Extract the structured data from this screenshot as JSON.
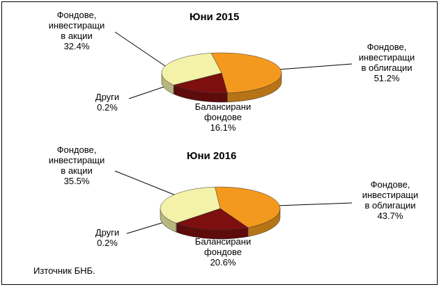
{
  "chart_data": [
    {
      "type": "pie3d",
      "title": "Юни 2015",
      "categories": [
        "Фондове, инвестиращи в облигации",
        "Балансирани фондове",
        "Други",
        "Фондове, инвестиращи в акции"
      ],
      "values": [
        51.2,
        16.1,
        0.2,
        32.4
      ],
      "value_labels": [
        "51.2%",
        "16.1%",
        "0.2%",
        "32.4%"
      ],
      "colors": [
        "#f39a1e",
        "#7d0f0f",
        "#d9d9d9",
        "#f4f2a8"
      ]
    },
    {
      "type": "pie3d",
      "title": "Юни 2016",
      "categories": [
        "Фондове, инвестиращи в облигации",
        "Балансирани фондове",
        "Други",
        "Фондове, инвестиращи в акции"
      ],
      "values": [
        43.7,
        20.6,
        0.2,
        35.5
      ],
      "value_labels": [
        "43.7%",
        "20.6%",
        "0.2%",
        "35.5%"
      ],
      "colors": [
        "#f39a1e",
        "#7d0f0f",
        "#d9d9d9",
        "#f4f2a8"
      ]
    }
  ],
  "source": "Източник БНБ."
}
